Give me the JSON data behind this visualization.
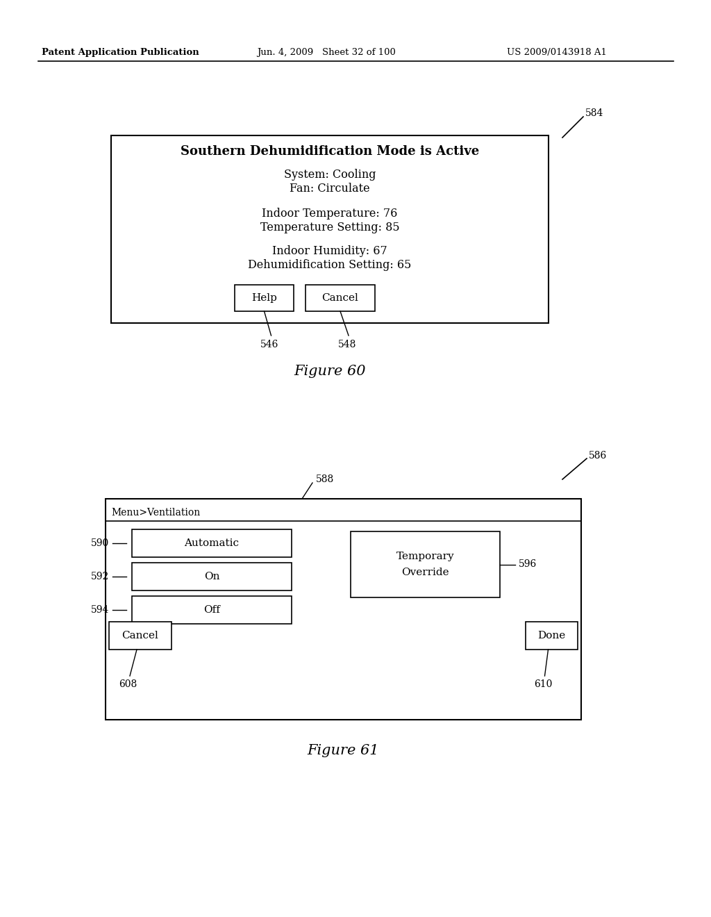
{
  "header_left": "Patent Application Publication",
  "header_mid": "Jun. 4, 2009   Sheet 32 of 100",
  "header_right": "US 2009/0143918 A1",
  "fig60": {
    "label": "584",
    "title": "Southern Dehumidification Mode is Active",
    "line1": "System: Cooling",
    "line2": "Fan: Circulate",
    "line3": "Indoor Temperature: 76",
    "line4": "Temperature Setting: 85",
    "line5": "Indoor Humidity: 67",
    "line6": "Dehumidification Setting: 65",
    "btn1": "Help",
    "btn2": "Cancel",
    "btn1_label": "546",
    "btn2_label": "548",
    "caption": "Figure 60"
  },
  "fig61": {
    "label": "586",
    "box_label": "588",
    "menu_title": "Menu>Ventilation",
    "btn_auto": "Automatic",
    "btn_on": "On",
    "btn_off": "Off",
    "btn_temp": "Temporary\nOverride",
    "btn_cancel": "Cancel",
    "btn_done": "Done",
    "lbl_auto": "590",
    "lbl_on": "592",
    "lbl_off": "594",
    "lbl_temp": "596",
    "lbl_cancel": "608",
    "lbl_done": "610",
    "caption": "Figure 61"
  },
  "bg_color": "#ffffff",
  "box_color": "#ffffff",
  "border_color": "#000000",
  "text_color": "#000000"
}
